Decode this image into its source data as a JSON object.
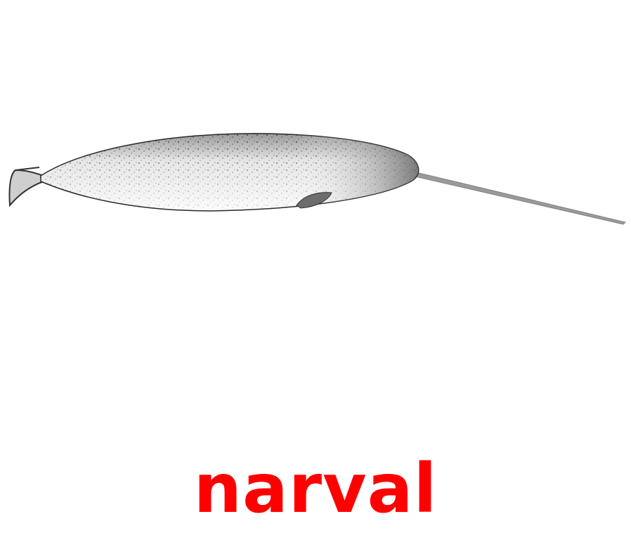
{
  "card": {
    "illustration_subject": "narwhal",
    "caption": "narval",
    "caption_color": "#ff0000"
  }
}
